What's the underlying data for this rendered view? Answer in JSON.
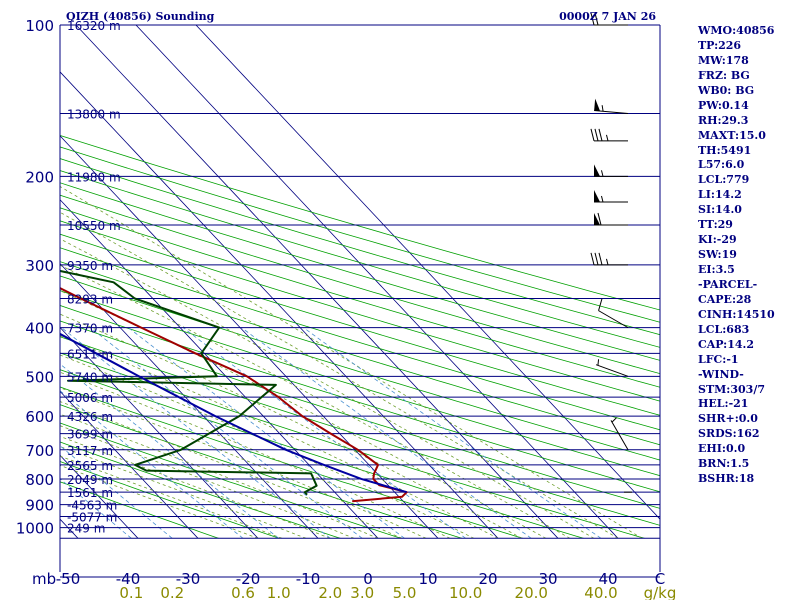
{
  "chart_data": {
    "type": "skew-t",
    "title": "QIZH (40856) Sounding",
    "time": "0000Z  7 JAN 26",
    "pressure_levels": [
      100,
      200,
      300,
      400,
      500,
      600,
      700,
      800,
      900,
      1000
    ],
    "pressure_range": [
      1050,
      100
    ],
    "height_labels": [
      {
        "p": 100,
        "label": "16320 m"
      },
      {
        "p": 150,
        "label": "13800 m"
      },
      {
        "p": 200,
        "label": "11980 m"
      },
      {
        "p": 250,
        "label": "10550 m"
      },
      {
        "p": 300,
        "label": "9350 m"
      },
      {
        "p": 350,
        "label": "8293 m"
      },
      {
        "p": 400,
        "label": "7370 m"
      },
      {
        "p": 450,
        "label": "6511 m"
      },
      {
        "p": 500,
        "label": "5740 m"
      },
      {
        "p": 550,
        "label": "5006 m"
      },
      {
        "p": 600,
        "label": "4326 m"
      },
      {
        "p": 650,
        "label": "3699 m"
      },
      {
        "p": 700,
        "label": "3117 m"
      },
      {
        "p": 750,
        "label": "2565 m"
      },
      {
        "p": 800,
        "label": "2049 m"
      },
      {
        "p": 850,
        "label": "1561 m"
      },
      {
        "p": 900,
        "label": "-4563 m"
      },
      {
        "p": 950,
        "label": "-5077 m"
      },
      {
        "p": 1000,
        "label": "249 m"
      }
    ],
    "temperature_axis": {
      "label": "mb",
      "ticks": [
        -50,
        -40,
        -30,
        -20,
        -10,
        0,
        10,
        20,
        30,
        40
      ],
      "range": [
        -50,
        50
      ],
      "end_label": "C"
    },
    "mixing_ratio_axis": {
      "unit": "g/kg",
      "ticks": [
        0.1,
        0.2,
        0.6,
        1.0,
        2.0,
        3.0,
        5.0,
        10.0,
        20.0,
        40.0
      ]
    },
    "series": [
      {
        "name": "temperature",
        "color": "#a00000",
        "points": [
          [
            886,
            1.5
          ],
          [
            868,
            10.5
          ],
          [
            850,
            12.0
          ],
          [
            823,
            8.5
          ],
          [
            800,
            8.5
          ],
          [
            780,
            9.5
          ],
          [
            750,
            11.5
          ],
          [
            700,
            10.5
          ],
          [
            650,
            8.5
          ],
          [
            600,
            6.5
          ],
          [
            550,
            5.5
          ],
          [
            500,
            3.5
          ],
          [
            450,
            -1.5
          ],
          [
            400,
            -6.5
          ],
          [
            350,
            -12
          ],
          [
            300,
            -18
          ],
          [
            250,
            -18.5
          ],
          [
            215,
            -16.5
          ],
          [
            200,
            -13.5
          ],
          [
            175,
            -10
          ],
          [
            150,
            -8.5
          ],
          [
            125,
            -6.5
          ],
          [
            112,
            -5.5
          ],
          [
            104,
            -5
          ],
          [
            100,
            -4.5
          ]
        ]
      },
      {
        "name": "dewpoint",
        "color": "#004000",
        "points": [
          [
            860,
            -5
          ],
          [
            850,
            -5
          ],
          [
            825,
            -2
          ],
          [
            780,
            -1
          ],
          [
            770,
            -28
          ],
          [
            750,
            -29
          ],
          [
            700,
            -19
          ],
          [
            600,
            -4
          ],
          [
            520,
            7
          ],
          [
            510,
            -27
          ],
          [
            500,
            -1.5
          ],
          [
            450,
            -0.5
          ],
          [
            400,
            6.5
          ],
          [
            350,
            -3
          ],
          [
            325,
            -4
          ],
          [
            300,
            -15
          ],
          [
            250,
            -27
          ],
          [
            225,
            -30.5
          ],
          [
            200,
            -33
          ],
          [
            175,
            -37
          ],
          [
            150,
            -41
          ],
          [
            125,
            -44
          ],
          [
            105,
            -49
          ],
          [
            100,
            -51
          ]
        ]
      },
      {
        "name": "parcel",
        "color": "#0000a0",
        "points": [
          [
            850,
            12
          ],
          [
            800,
            6.5
          ],
          [
            750,
            2.5
          ],
          [
            700,
            -1.5
          ],
          [
            600,
            -8
          ],
          [
            500,
            -14.5
          ],
          [
            400,
            -22
          ],
          [
            350,
            -27
          ],
          [
            300,
            -33
          ],
          [
            250,
            -41
          ],
          [
            200,
            -50
          ],
          [
            150,
            -61
          ],
          [
            110,
            -71
          ]
        ]
      }
    ],
    "wind_barbs": [
      {
        "p": 100,
        "dir": 270,
        "speed": 20
      },
      {
        "p": 150,
        "dir": 275,
        "speed": 55
      },
      {
        "p": 170,
        "dir": 270,
        "speed": 35
      },
      {
        "p": 200,
        "dir": 270,
        "speed": 55
      },
      {
        "p": 225,
        "dir": 270,
        "speed": 55
      },
      {
        "p": 250,
        "dir": 270,
        "speed": 60
      },
      {
        "p": 300,
        "dir": 270,
        "speed": 35
      },
      {
        "p": 400,
        "dir": 300,
        "speed": 10
      },
      {
        "p": 500,
        "dir": 290,
        "speed": 5
      },
      {
        "p": 700,
        "dir": 330,
        "speed": 5
      },
      {
        "p": 850,
        "dir": 0,
        "speed": 0
      }
    ]
  },
  "indices": [
    "WMO:40856",
    "TP:226",
    "MW:178",
    "FRZ: BG",
    "WB0: BG",
    "PW:0.14",
    "RH:29.3",
    "MAXT:15.0",
    "TH:5491",
    "L57:6.0",
    "LCL:779",
    "LI:14.2",
    "SI:14.0",
    "TT:29",
    "KI:-29",
    "SW:19",
    "EI:3.5",
    "-PARCEL-",
    "CAPE:28",
    "CINH:14510",
    "LCL:683",
    "CAP:14.2",
    "LFC:-1",
    "-WIND-",
    "STM:303/7",
    "HEL:-21",
    "SHR+:0.0",
    "SRDS:162",
    "EHI:0.0",
    "BRN:1.5",
    "BSHR:18"
  ],
  "colors": {
    "isobar": "#000080",
    "isotherm": "#000080",
    "dry_adiabat": "#00a000",
    "moist_adiabat": "#70a030",
    "mixing_ratio": "#4a90d0",
    "text": "#000080"
  }
}
